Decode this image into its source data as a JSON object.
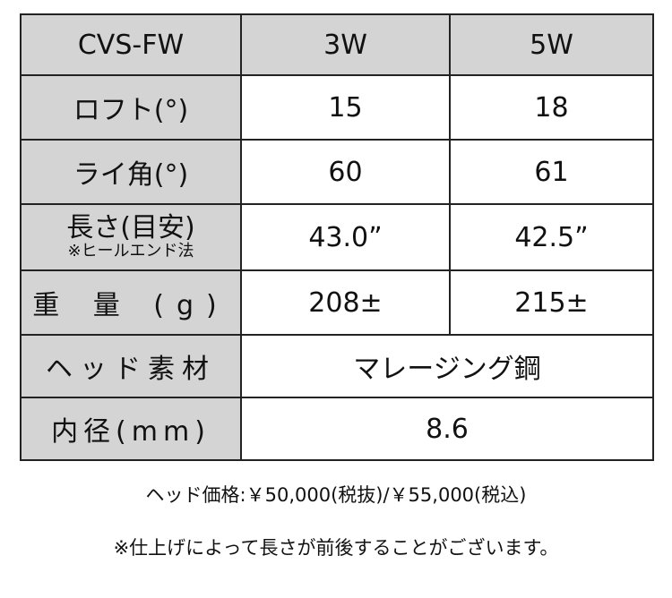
{
  "table": {
    "header": [
      "CVS-FW",
      "3W",
      "5W"
    ],
    "rows": [
      {
        "label": "ロフト(°)",
        "values": [
          "15",
          "18"
        ]
      },
      {
        "label": "ライ角(°)",
        "values": [
          "60",
          "61"
        ]
      },
      {
        "label": "長さ(目安)",
        "sublabel": "※ヒールエンド法",
        "values": [
          "43.0”",
          "42.5”"
        ]
      },
      {
        "label": "重 量 (g)",
        "values": [
          "208±",
          "215±"
        ]
      },
      {
        "label": "ヘッド素材",
        "value": "マレージング鋼"
      },
      {
        "label": "内径(mm)",
        "value": "8.6"
      }
    ]
  },
  "price_note": "ヘッド価格:￥50,000(税抜)/￥55,000(税込)",
  "length_note": "※仕上げによって長さが前後することがございます。",
  "colors": {
    "header_bg": "#d4d4d4",
    "border": "#222222"
  }
}
